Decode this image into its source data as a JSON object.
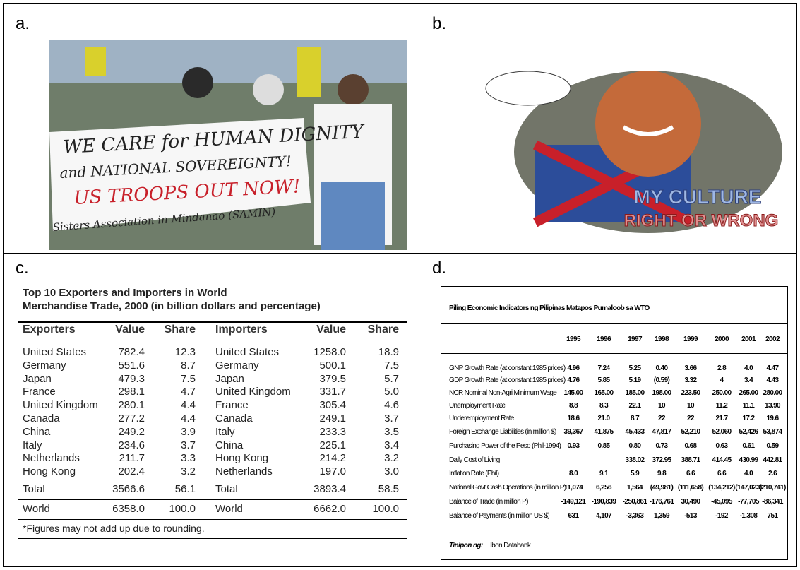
{
  "panels": {
    "a": {
      "label": "a.",
      "banner": [
        "WE CARE for HUMAN DIGNITY",
        "and NATIONAL SOVEREIGNTY!",
        "US TROOPS OUT NOW!",
        "Sisters Association in Mindanao (SAMIN)"
      ]
    },
    "b": {
      "label": "b.",
      "caption": [
        "MY CULTURE",
        "RIGHT OR WRONG"
      ]
    },
    "c": {
      "label": "c.",
      "title": [
        "Top 10 Exporters and Importers in World",
        "Merchandise Trade, 2000 (in billion dollars and percentage)"
      ],
      "header": [
        "Exporters",
        "Value",
        "Share",
        "Importers",
        "Value",
        "Share"
      ],
      "rows": [
        [
          "United States",
          "782.4",
          "12.3",
          "United States",
          "1258.0",
          "18.9"
        ],
        [
          "Germany",
          "551.6",
          "8.7",
          "Germany",
          "500.1",
          "7.5"
        ],
        [
          "Japan",
          "479.3",
          "7.5",
          "Japan",
          "379.5",
          "5.7"
        ],
        [
          "France",
          "298.1",
          "4.7",
          "United Kingdom",
          "331.7",
          "5.0"
        ],
        [
          "United Kingdom",
          "280.1",
          "4.4",
          "France",
          "305.4",
          "4.6"
        ],
        [
          "Canada",
          "277.2",
          "4.4",
          "Canada",
          "249.1",
          "3.7"
        ],
        [
          "China",
          "249.2",
          "3.9",
          "Italy",
          "233.3",
          "3.5"
        ],
        [
          "Italy",
          "234.6",
          "3.7",
          "China",
          "225.1",
          "3.4"
        ],
        [
          "Netherlands",
          "211.7",
          "3.3",
          "Hong Kong",
          "214.2",
          "3.2"
        ],
        [
          "Hong Kong",
          "202.4",
          "3.2",
          "Netherlands",
          "197.0",
          "3.0"
        ]
      ],
      "total": [
        "Total",
        "3566.6",
        "56.1",
        "Total",
        "3893.4",
        "58.5"
      ],
      "world": [
        "World",
        "6358.0",
        "100.0",
        "World",
        "6662.0",
        "100.0"
      ],
      "footnote": "*Figures may not add up due to rounding."
    },
    "d": {
      "label": "d.",
      "title": "Piling Economic Indicators ng Pilipinas Matapos Pumaloob sa WTO",
      "years": [
        "1995",
        "1996",
        "1997",
        "1998",
        "1999",
        "2000",
        "2001",
        "2002"
      ],
      "rows": [
        {
          "label": "GNP Growth Rate (at constant 1985 prices)",
          "values": [
            "4.96",
            "7.24",
            "5.25",
            "0.40",
            "3.66",
            "2.8",
            "4.0",
            "4.47"
          ]
        },
        {
          "label": "GDP Growth Rate (at constant 1985 prices)",
          "values": [
            "4.76",
            "5.85",
            "5.19",
            "(0.59)",
            "3.32",
            "4",
            "3.4",
            "4.43"
          ]
        },
        {
          "label": "NCR Nominal Non-Agri Minimum Wage",
          "values": [
            "145.00",
            "165.00",
            "185.00",
            "198.00",
            "223.50",
            "250.00",
            "265.00",
            "280.00"
          ]
        },
        {
          "label": "Unemployment Rate",
          "values": [
            "8.8",
            "8.3",
            "22.1",
            "10",
            "10",
            "11.2",
            "11.1",
            "13.90"
          ]
        },
        {
          "label": "Underemployment Rate",
          "values": [
            "18.6",
            "21.0",
            "8.7",
            "22",
            "22",
            "21.7",
            "17.2",
            "19.6"
          ]
        },
        {
          "label": "Foreign Exchange Liabilities (in million $)",
          "values": [
            "39,367",
            "41,875",
            "45,433",
            "47,817",
            "52,210",
            "52,060",
            "52,426",
            "53,874"
          ]
        },
        {
          "label": "Purchasing Power of the Peso (Phil-1994)",
          "values": [
            "0.93",
            "0.85",
            "0.80",
            "0.73",
            "0.68",
            "0.63",
            "0.61",
            "0.59"
          ]
        },
        {
          "label": "Daily Cost of Living",
          "values": [
            null,
            null,
            "338.02",
            "372.95",
            "388.71",
            "414.45",
            "430.99",
            "442.81"
          ]
        },
        {
          "label": "Inflation Rate (Phil)",
          "values": [
            "8.0",
            "9.1",
            "5.9",
            "9.8",
            "6.6",
            "6.6",
            "4.0",
            "2.6"
          ]
        },
        {
          "label": "National Govt Cash Operations (in million P)",
          "values": [
            "11,074",
            "6,256",
            "1,564",
            "(49,981)",
            "(111,658)",
            "(134,212)",
            "(147,023)",
            "(210,741)"
          ]
        },
        {
          "label": "Balance of Trade (in million P)",
          "values": [
            "-149,121",
            "-190,839",
            "-250,861",
            "-176,761",
            "30,490",
            "-45,095",
            "-77,705",
            "-86,341"
          ]
        },
        {
          "label": "Balance of Payments (in million US $)",
          "values": [
            "631",
            "4,107",
            "-3,363",
            "1,359",
            "-513",
            "-192",
            "-1,308",
            "751"
          ]
        }
      ],
      "source_label": "Tinipon ng:",
      "source": "Ibon Databank"
    }
  }
}
